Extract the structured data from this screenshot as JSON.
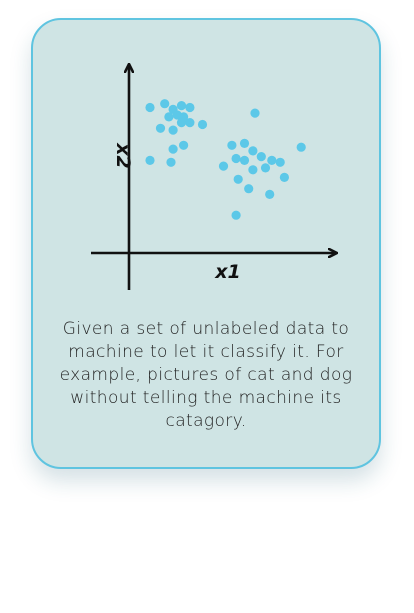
{
  "card": {
    "caption": "Given a set of unlabeled data to machine to let it classify it. For example, pictures of cat and dog without telling the machine its catagory.",
    "background": "#cfe4e4",
    "border_color": "#5fc4e0"
  },
  "chart_data": {
    "type": "scatter",
    "xlabel": "x1",
    "ylabel": "x2",
    "grid": false,
    "xlim": [
      0,
      10
    ],
    "ylim": [
      0,
      10
    ],
    "point_color": "#5cc8e8",
    "series": [
      {
        "points": [
          [
            1.0,
            7.7
          ],
          [
            1.7,
            7.9
          ],
          [
            2.5,
            7.8
          ],
          [
            2.1,
            7.6
          ],
          [
            2.9,
            7.7
          ],
          [
            1.9,
            7.2
          ],
          [
            2.3,
            7.3
          ],
          [
            2.6,
            7.2
          ],
          [
            2.5,
            6.9
          ],
          [
            3.5,
            6.8
          ],
          [
            1.5,
            6.6
          ],
          [
            2.1,
            6.5
          ],
          [
            2.9,
            6.9
          ],
          [
            2.6,
            5.7
          ],
          [
            2.1,
            5.5
          ],
          [
            2.0,
            4.8
          ],
          [
            1.0,
            4.9
          ]
        ]
      },
      {
        "points": [
          [
            6.0,
            7.4
          ],
          [
            4.9,
            5.7
          ],
          [
            5.5,
            5.8
          ],
          [
            5.1,
            5.0
          ],
          [
            5.5,
            4.9
          ],
          [
            5.9,
            5.4
          ],
          [
            6.3,
            5.1
          ],
          [
            6.8,
            4.9
          ],
          [
            4.5,
            4.6
          ],
          [
            5.9,
            4.4
          ],
          [
            6.5,
            4.5
          ],
          [
            7.2,
            4.8
          ],
          [
            8.2,
            5.6
          ],
          [
            5.2,
            3.9
          ],
          [
            7.4,
            4.0
          ],
          [
            5.7,
            3.4
          ],
          [
            6.7,
            3.1
          ],
          [
            5.1,
            2.0
          ]
        ]
      }
    ]
  }
}
